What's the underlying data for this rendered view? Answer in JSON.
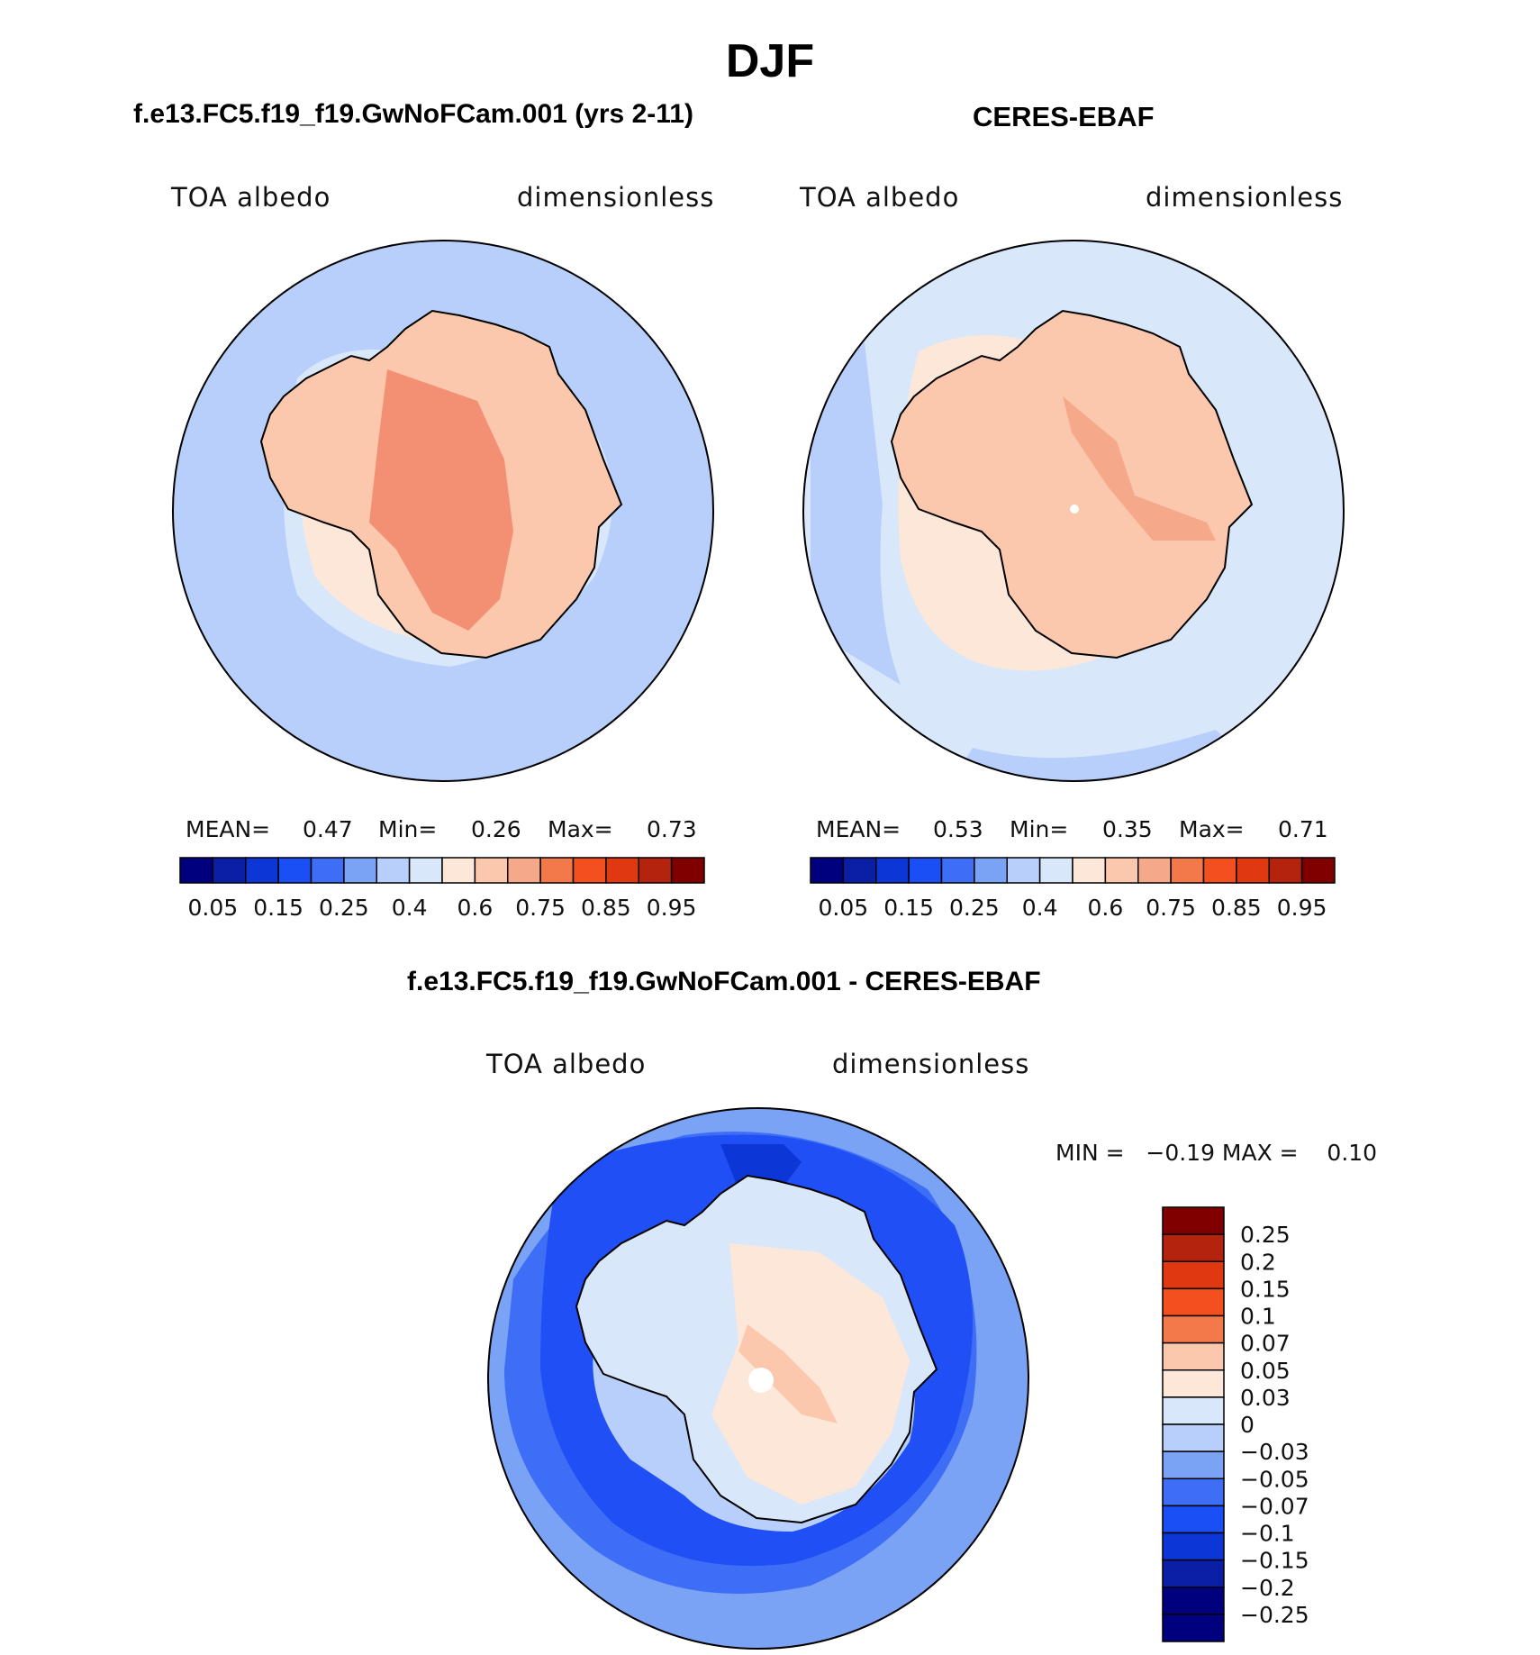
{
  "figure": {
    "season_title": "DJF",
    "panel_a": {
      "title": "f.e13.FC5.f19_f19.GwNoFCam.001 (yrs 2-11)",
      "variable": "TOA albedo",
      "units": "dimensionless",
      "mean_label": "MEAN=",
      "mean_value": "0.47",
      "min_label": "Min=",
      "min_value": "0.26",
      "max_label": "Max=",
      "max_value": "0.73"
    },
    "panel_b": {
      "title": "CERES-EBAF",
      "variable": "TOA albedo",
      "units": "dimensionless",
      "mean_label": "MEAN=",
      "mean_value": "0.53",
      "min_label": "Min=",
      "min_value": "0.35",
      "max_label": "Max=",
      "max_value": "0.71"
    },
    "panel_diff": {
      "title": "f.e13.FC5.f19_f19.GwNoFCam.001 - CERES-EBAF",
      "variable": "TOA albedo",
      "units": "dimensionless",
      "min_max_text": "MIN =   −0.19 MAX =    0.10"
    },
    "colors": {
      "land_high": "#f6a98a",
      "land_core": "#f39073",
      "ocean_model": "#b7cffa",
      "ocean_obs": "#d9e7fb",
      "sea_ice_light": "#fde7d9",
      "diff_ocean": "#1f4ff5",
      "diff_outer": "#7aa2f5",
      "diff_land": "#fde7d9"
    }
  },
  "chart_data": [
    {
      "type": "heatmap",
      "projection": "south-polar-stereographic",
      "title": "f.e13.FC5.f19_f19.GwNoFCam.001 (yrs 2-11)",
      "variable": "TOA albedo",
      "units": "dimensionless",
      "mean": 0.47,
      "min": 0.26,
      "max": 0.73,
      "colorbar_levels": [
        0.05,
        0.1,
        0.15,
        0.2,
        0.25,
        0.3,
        0.4,
        0.5,
        0.6,
        0.7,
        0.75,
        0.8,
        0.85,
        0.9,
        0.95
      ],
      "colorbar_tick_labels": [
        "0.05",
        "0.15",
        "0.25",
        "0.4",
        "0.6",
        "0.75",
        "0.85",
        "0.95"
      ],
      "colorbar_colors": [
        "#00007f",
        "#0a1fa6",
        "#0d36d6",
        "#1a4ff5",
        "#3d6ef5",
        "#7aa2f5",
        "#b7cffa",
        "#d9e7fb",
        "#fde7d9",
        "#fbc7ad",
        "#f6a98a",
        "#f4794a",
        "#f4501f",
        "#e03810",
        "#b4230d",
        "#800000"
      ]
    },
    {
      "type": "heatmap",
      "projection": "south-polar-stereographic",
      "title": "CERES-EBAF",
      "variable": "TOA albedo",
      "units": "dimensionless",
      "mean": 0.53,
      "min": 0.35,
      "max": 0.71,
      "colorbar_levels": [
        0.05,
        0.1,
        0.15,
        0.2,
        0.25,
        0.3,
        0.4,
        0.5,
        0.6,
        0.7,
        0.75,
        0.8,
        0.85,
        0.9,
        0.95
      ],
      "colorbar_tick_labels": [
        "0.05",
        "0.15",
        "0.25",
        "0.4",
        "0.6",
        "0.75",
        "0.85",
        "0.95"
      ],
      "colorbar_colors": [
        "#00007f",
        "#0a1fa6",
        "#0d36d6",
        "#1a4ff5",
        "#3d6ef5",
        "#7aa2f5",
        "#b7cffa",
        "#d9e7fb",
        "#fde7d9",
        "#fbc7ad",
        "#f6a98a",
        "#f4794a",
        "#f4501f",
        "#e03810",
        "#b4230d",
        "#800000"
      ]
    },
    {
      "type": "heatmap",
      "projection": "south-polar-stereographic",
      "title": "f.e13.FC5.f19_f19.GwNoFCam.001 - CERES-EBAF",
      "variable": "TOA albedo",
      "units": "dimensionless",
      "min": -0.19,
      "max": 0.1,
      "colorbar_levels": [
        0.25,
        0.2,
        0.15,
        0.1,
        0.07,
        0.05,
        0.03,
        0,
        -0.03,
        -0.05,
        -0.07,
        -0.1,
        -0.15,
        -0.2,
        -0.25
      ],
      "colorbar_tick_labels": [
        "0.25",
        "0.2",
        "0.15",
        "0.1",
        "0.07",
        "0.05",
        "0.03",
        "0",
        "−0.03",
        "−0.05",
        "−0.07",
        "−0.1",
        "−0.15",
        "−0.2",
        "−0.25"
      ],
      "colorbar_colors": [
        "#800000",
        "#b4230d",
        "#e03810",
        "#f4501f",
        "#f4794a",
        "#fbc7ad",
        "#fde7d9",
        "#d9e7fb",
        "#b7cffa",
        "#7aa2f5",
        "#3d6ef5",
        "#1a4ff5",
        "#0d36d6",
        "#0a1fa6",
        "#00007f",
        "#00007f"
      ]
    }
  ]
}
